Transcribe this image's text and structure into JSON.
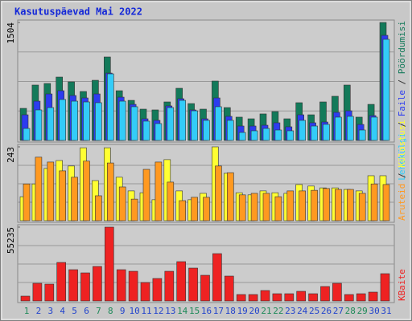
{
  "title": "Kasutuspäevad Mai 2022",
  "separator": " / ",
  "chart_data": [
    {
      "type": "bar",
      "ylim": [
        0,
        1504
      ],
      "yticks": [
        1504
      ],
      "series": [
        {
          "name": "Pöördumisi",
          "color": "#137a5a",
          "values": [
            409,
            706,
            726,
            808,
            747,
            624,
            767,
            1064,
            634,
            511,
            399,
            389,
            491,
            665,
            470,
            399,
            757,
            419,
            297,
            276,
            338,
            368,
            276,
            481,
            327,
            491,
            563,
            706,
            297,
            460,
            1504
          ]
        },
        {
          "name": "Faile",
          "color": "#2c3cf0",
          "values": [
            327,
            501,
            593,
            634,
            573,
            542,
            593,
            859,
            552,
            460,
            276,
            256,
            440,
            532,
            389,
            276,
            542,
            307,
            184,
            184,
            194,
            225,
            174,
            327,
            225,
            235,
            358,
            378,
            204,
            317,
            1340
          ]
        },
        {
          "name": "Lehekülgi",
          "color": "#33ccf8",
          "values": [
            153,
            389,
            419,
            522,
            501,
            491,
            481,
            849,
            501,
            430,
            246,
            215,
            419,
            511,
            378,
            256,
            430,
            256,
            102,
            123,
            153,
            133,
            123,
            256,
            184,
            205,
            297,
            307,
            133,
            297,
            1289
          ]
        }
      ]
    },
    {
      "type": "bar",
      "ylim": [
        0,
        243
      ],
      "yticks": [
        243
      ],
      "series": [
        {
          "name": "Külastusi",
          "color": "#ffff33",
          "values": [
            79,
            121,
            172,
            198,
            180,
            240,
            132,
            240,
            143,
            98,
            92,
            69,
            201,
            98,
            69,
            90,
            243,
            156,
            92,
            85,
            98,
            92,
            90,
            119,
            114,
            108,
            108,
            103,
            98,
            148,
            148
          ]
        },
        {
          "name": "Aruteid",
          "color": "#ff9920",
          "values": [
            121,
            209,
            193,
            164,
            143,
            196,
            82,
            190,
            111,
            71,
            169,
            193,
            127,
            66,
            77,
            77,
            180,
            158,
            85,
            90,
            90,
            79,
            98,
            98,
            100,
            106,
            103,
            103,
            90,
            121,
            119
          ]
        }
      ]
    },
    {
      "type": "bar",
      "ylim": [
        0,
        55235
      ],
      "yticks": [
        55235
      ],
      "categories": [
        "1",
        "2",
        "3",
        "4",
        "5",
        "6",
        "7",
        "8",
        "9",
        "10",
        "11",
        "12",
        "13",
        "14",
        "15",
        "16",
        "17",
        "18",
        "19",
        "20",
        "21",
        "22",
        "23",
        "24",
        "25",
        "26",
        "27",
        "28",
        "29",
        "30",
        "31"
      ],
      "category_colors": [
        "#1f8a5a",
        "#2244cc",
        "#2244cc",
        "#2244cc",
        "#2244cc",
        "#2244cc",
        "#1f8a5a",
        "#1f8a5a",
        "#2244cc",
        "#2244cc",
        "#2244cc",
        "#2244cc",
        "#2244cc",
        "#1f8a5a",
        "#1f8a5a",
        "#2244cc",
        "#2244cc",
        "#2244cc",
        "#2244cc",
        "#2244cc",
        "#1f8a5a",
        "#1f8a5a",
        "#2244cc",
        "#2244cc",
        "#2244cc",
        "#2244cc",
        "#2244cc",
        "#1f8a5a",
        "#1f8a5a",
        "#2244cc",
        "#2244cc"
      ],
      "series": [
        {
          "name": "KBaite",
          "color": "#ee2222",
          "values": [
            3600,
            13200,
            12600,
            28800,
            23400,
            21000,
            25800,
            55235,
            23400,
            22200,
            13800,
            16800,
            22200,
            29400,
            24600,
            19200,
            35400,
            18600,
            4800,
            4800,
            7800,
            5400,
            5400,
            7200,
            5400,
            10800,
            13200,
            4800,
            5400,
            6600,
            20400
          ]
        }
      ]
    }
  ]
}
